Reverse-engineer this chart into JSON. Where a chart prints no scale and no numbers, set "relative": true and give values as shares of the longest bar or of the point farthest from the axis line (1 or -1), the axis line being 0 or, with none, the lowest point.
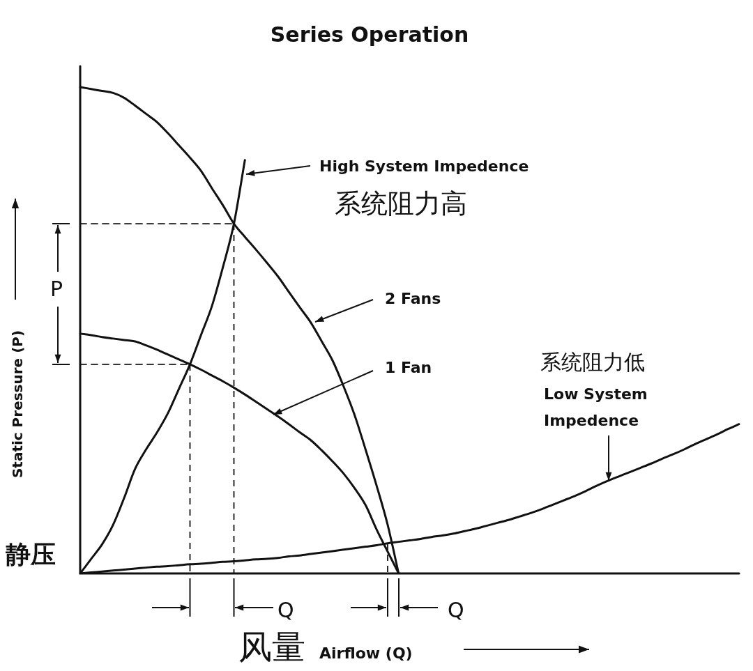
{
  "chart_data": {
    "type": "line",
    "title": "Series Operation",
    "xlabel": [
      "风量",
      "Airflow (Q)"
    ],
    "ylabel": [
      "静压",
      "Static Pressure (P)"
    ],
    "relative": true,
    "grid": false,
    "legend": false,
    "marker": "none",
    "categories": [
      null,
      null,
      null,
      null,
      null,
      null,
      null,
      null,
      null,
      null,
      null,
      null,
      null,
      null,
      null,
      null,
      null,
      null,
      null,
      null,
      null,
      null,
      null,
      null,
      null,
      null,
      null,
      null,
      null,
      null,
      null,
      null,
      null,
      null,
      null,
      null,
      null,
      null,
      null,
      null,
      null,
      null,
      null,
      null,
      null,
      null,
      null,
      null,
      null,
      null,
      null,
      null,
      null,
      null,
      null,
      null,
      null,
      null,
      null,
      null,
      null
    ],
    "series": [
      {
        "color": "#111111",
        "values": [
          1,
          0.996,
          0.992,
          0.988,
          0.978,
          0.962,
          0.945,
          0.928,
          0.905,
          0.88,
          0.855,
          0.828,
          0.792,
          0.757,
          0.719,
          0.692,
          0.666,
          0.639,
          0.611,
          0.579,
          0.547,
          0.516,
          0.477,
          0.437,
          0.384,
          0.325,
          0.254,
          0.18,
          0.1,
          0,
          null,
          null,
          null,
          null,
          null,
          null,
          null,
          null,
          null,
          null,
          null,
          null,
          null,
          null,
          null,
          null,
          null,
          null,
          null,
          null,
          null,
          null,
          null,
          null,
          null,
          null,
          null,
          null,
          null,
          null,
          null
        ]
      },
      {
        "color": "#111111",
        "values": [
          0.493,
          0.49,
          0.486,
          0.483,
          0.48,
          0.477,
          0.469,
          0.46,
          0.45,
          0.44,
          0.43,
          0.419,
          0.407,
          0.395,
          0.382,
          0.368,
          0.353,
          0.338,
          0.323,
          0.307,
          0.29,
          0.274,
          0.253,
          0.23,
          0.205,
          0.175,
          0.14,
          0.09,
          0.045,
          0,
          null,
          null,
          null,
          null,
          null,
          null,
          null,
          null,
          null,
          null,
          null,
          null,
          null,
          null,
          null,
          null,
          null,
          null,
          null,
          null,
          null,
          null,
          null,
          null,
          null,
          null,
          null,
          null,
          null,
          null,
          null
        ]
      },
      {
        "color": "#111111",
        "values": [
          0,
          0.03,
          0.06,
          0.1,
          0.155,
          0.215,
          0.255,
          0.29,
          0.33,
          0.38,
          0.43,
          0.49,
          0.55,
          0.63,
          0.719,
          0.85,
          null,
          null,
          null,
          null,
          null,
          null,
          null,
          null,
          null,
          null,
          null,
          null,
          null,
          null,
          null,
          null,
          null,
          null,
          null,
          null,
          null,
          null,
          null,
          null,
          null,
          null,
          null,
          null,
          null,
          null,
          null,
          null,
          null,
          null,
          null,
          null,
          null,
          null,
          null,
          null,
          null,
          null,
          null,
          null,
          null
        ]
      },
      {
        "color": "#111111",
        "values": [
          0,
          0.002,
          0.004,
          0.006,
          0.008,
          0.01,
          0.012,
          0.014,
          0.015,
          0.017,
          0.019,
          0.02,
          0.022,
          0.024,
          0.025,
          0.027,
          0.029,
          0.03,
          0.032,
          0.035,
          0.037,
          0.04,
          0.043,
          0.046,
          0.049,
          0.052,
          0.055,
          0.058,
          0.062,
          0.065,
          0.068,
          0.071,
          0.075,
          0.078,
          0.082,
          0.087,
          0.092,
          0.098,
          0.104,
          0.11,
          0.117,
          0.124,
          0.132,
          0.141,
          0.15,
          0.159,
          0.169,
          0.18,
          0.19,
          0.199,
          0.208,
          0.217,
          0.226,
          0.236,
          0.245,
          0.255,
          0.266,
          0.276,
          0.286,
          0.297,
          0.307
        ]
      },
      {
        "color": "#111111",
        "line_style": "dashed",
        "values": [
          0.43,
          0.43,
          0.43,
          0.43,
          0.43,
          0.43,
          0.43,
          0.43,
          0.43,
          0.43,
          0.43,
          null,
          null,
          null,
          null,
          null,
          null,
          null,
          null,
          null,
          null,
          null,
          null,
          null,
          null,
          null,
          null,
          null,
          null,
          null,
          null,
          null,
          null,
          null,
          null,
          null,
          null,
          null,
          null,
          null,
          null,
          null,
          null,
          null,
          null,
          null,
          null,
          null,
          null,
          null,
          null,
          null,
          null,
          null,
          null,
          null,
          null,
          null,
          null,
          null,
          null
        ]
      },
      {
        "color": "#111111",
        "line_style": "dashed",
        "values": [
          0.719,
          0.719,
          0.719,
          0.719,
          0.719,
          0.719,
          0.719,
          0.719,
          0.719,
          0.719,
          0.719,
          0.719,
          0.719,
          0.719,
          0.719,
          null,
          null,
          null,
          null,
          null,
          null,
          null,
          null,
          null,
          null,
          null,
          null,
          null,
          null,
          null,
          null,
          null,
          null,
          null,
          null,
          null,
          null,
          null,
          null,
          null,
          null,
          null,
          null,
          null,
          null,
          null,
          null,
          null,
          null,
          null,
          null,
          null,
          null,
          null,
          null,
          null,
          null,
          null,
          null,
          null,
          null
        ]
      }
    ],
    "annotations": [
      "High System Impedence",
      "系统阻力高",
      "2 Fans",
      "1 Fan",
      "系统阻力低",
      "Low System Impedence",
      "P",
      "Q",
      "Q"
    ]
  }
}
